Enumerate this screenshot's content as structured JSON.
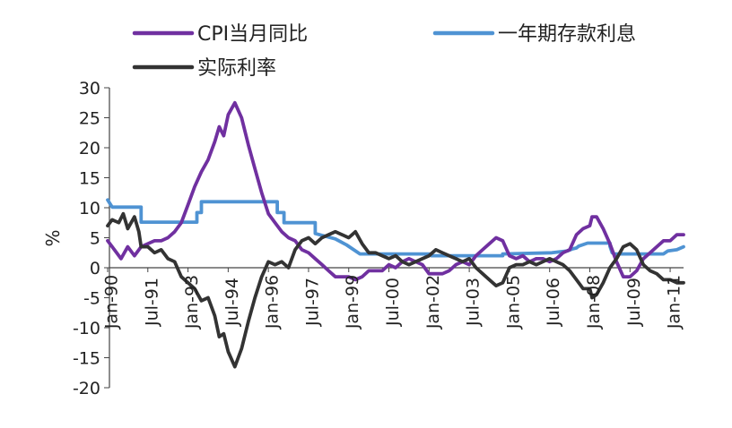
{
  "chart_data": {
    "type": "line",
    "title": "",
    "xlabel": "",
    "ylabel": "%",
    "ylim": [
      -20,
      30
    ],
    "y_ticks": [
      30,
      25,
      20,
      15,
      10,
      5,
      0,
      -5,
      -10,
      -15,
      -20
    ],
    "x_tick_labels": [
      "Jan-90",
      "Jul-91",
      "Jan-93",
      "Jul-94",
      "Jan-96",
      "Jul-97",
      "Jan-99",
      "Jul-00",
      "Jan-02",
      "Jul-03",
      "Jan-05",
      "Jul-06",
      "Jan-08",
      "Jul-09",
      "Jan-11"
    ],
    "xlim": [
      "1990-01",
      "2011-07"
    ],
    "grid": false,
    "legend_position": "top",
    "series": [
      {
        "name": "CPI当月同比",
        "color": "#7030a0",
        "points": [
          [
            "1990-01",
            4.5
          ],
          [
            "1990-04",
            3.0
          ],
          [
            "1990-07",
            1.5
          ],
          [
            "1990-10",
            3.5
          ],
          [
            "1991-01",
            2.0
          ],
          [
            "1991-04",
            3.5
          ],
          [
            "1991-07",
            4.0
          ],
          [
            "1991-10",
            4.5
          ],
          [
            "1992-01",
            4.5
          ],
          [
            "1992-04",
            5.0
          ],
          [
            "1992-07",
            6.0
          ],
          [
            "1992-10",
            7.5
          ],
          [
            "1993-01",
            10.5
          ],
          [
            "1993-04",
            13.5
          ],
          [
            "1993-07",
            16.0
          ],
          [
            "1993-10",
            18.0
          ],
          [
            "1994-01",
            21.0
          ],
          [
            "1994-03",
            23.5
          ],
          [
            "1994-05",
            22.0
          ],
          [
            "1994-07",
            25.5
          ],
          [
            "1994-10",
            27.5
          ],
          [
            "1995-01",
            25.0
          ],
          [
            "1995-04",
            20.5
          ],
          [
            "1995-07",
            16.5
          ],
          [
            "1995-10",
            12.5
          ],
          [
            "1996-01",
            9.0
          ],
          [
            "1996-04",
            7.5
          ],
          [
            "1996-07",
            6.0
          ],
          [
            "1996-10",
            5.0
          ],
          [
            "1997-01",
            4.5
          ],
          [
            "1997-04",
            3.0
          ],
          [
            "1997-07",
            2.5
          ],
          [
            "1997-10",
            1.5
          ],
          [
            "1998-01",
            0.5
          ],
          [
            "1998-04",
            -0.5
          ],
          [
            "1998-07",
            -1.5
          ],
          [
            "1998-10",
            -1.5
          ],
          [
            "1999-01",
            -1.5
          ],
          [
            "1999-04",
            -2.0
          ],
          [
            "1999-07",
            -1.5
          ],
          [
            "1999-10",
            -0.5
          ],
          [
            "2000-01",
            -0.5
          ],
          [
            "2000-04",
            -0.5
          ],
          [
            "2000-07",
            0.5
          ],
          [
            "2000-10",
            0.0
          ],
          [
            "2001-01",
            1.0
          ],
          [
            "2001-04",
            1.5
          ],
          [
            "2001-07",
            1.0
          ],
          [
            "2001-10",
            0.5
          ],
          [
            "2002-01",
            -1.0
          ],
          [
            "2002-04",
            -1.0
          ],
          [
            "2002-07",
            -1.0
          ],
          [
            "2002-10",
            -0.5
          ],
          [
            "2003-01",
            0.5
          ],
          [
            "2003-04",
            1.0
          ],
          [
            "2003-07",
            0.5
          ],
          [
            "2003-10",
            2.0
          ],
          [
            "2004-01",
            3.0
          ],
          [
            "2004-04",
            4.0
          ],
          [
            "2004-07",
            5.0
          ],
          [
            "2004-10",
            4.5
          ],
          [
            "2005-01",
            2.0
          ],
          [
            "2005-04",
            1.5
          ],
          [
            "2005-07",
            2.0
          ],
          [
            "2005-10",
            1.0
          ],
          [
            "2006-01",
            1.5
          ],
          [
            "2006-04",
            1.5
          ],
          [
            "2006-07",
            1.0
          ],
          [
            "2006-10",
            1.5
          ],
          [
            "2007-01",
            2.5
          ],
          [
            "2007-04",
            3.0
          ],
          [
            "2007-07",
            5.5
          ],
          [
            "2007-10",
            6.5
          ],
          [
            "2008-01",
            7.0
          ],
          [
            "2008-02",
            8.5
          ],
          [
            "2008-04",
            8.5
          ],
          [
            "2008-07",
            6.5
          ],
          [
            "2008-10",
            4.0
          ],
          [
            "2009-01",
            1.0
          ],
          [
            "2009-04",
            -1.5
          ],
          [
            "2009-07",
            -1.5
          ],
          [
            "2009-10",
            -0.5
          ],
          [
            "2010-01",
            1.5
          ],
          [
            "2010-04",
            2.5
          ],
          [
            "2010-07",
            3.5
          ],
          [
            "2010-10",
            4.5
          ],
          [
            "2011-01",
            4.5
          ],
          [
            "2011-04",
            5.5
          ],
          [
            "2011-07",
            5.5
          ]
        ]
      },
      {
        "name": "一年期存款利息",
        "color": "#4f93d3",
        "points": [
          [
            "1990-01",
            11.3
          ],
          [
            "1990-03",
            10.1
          ],
          [
            "1991-04",
            10.1
          ],
          [
            "1991-04",
            7.6
          ],
          [
            "1993-05",
            7.6
          ],
          [
            "1993-05",
            9.2
          ],
          [
            "1993-07",
            9.2
          ],
          [
            "1993-07",
            11.0
          ],
          [
            "1996-05",
            11.0
          ],
          [
            "1996-05",
            9.2
          ],
          [
            "1996-08",
            9.2
          ],
          [
            "1996-08",
            7.5
          ],
          [
            "1997-10",
            7.5
          ],
          [
            "1997-10",
            5.7
          ],
          [
            "1998-03",
            5.2
          ],
          [
            "1998-07",
            4.8
          ],
          [
            "1998-12",
            3.8
          ],
          [
            "1999-06",
            2.3
          ],
          [
            "2002-02",
            2.3
          ],
          [
            "2002-02",
            2.0
          ],
          [
            "2004-10",
            2.0
          ],
          [
            "2004-10",
            2.3
          ],
          [
            "2006-08",
            2.5
          ],
          [
            "2007-03",
            2.8
          ],
          [
            "2007-05",
            3.1
          ],
          [
            "2007-07",
            3.3
          ],
          [
            "2007-08",
            3.6
          ],
          [
            "2007-12",
            4.1
          ],
          [
            "2008-10",
            4.1
          ],
          [
            "2008-10",
            3.6
          ],
          [
            "2008-11",
            2.5
          ],
          [
            "2008-12",
            2.3
          ],
          [
            "2010-10",
            2.3
          ],
          [
            "2010-12",
            2.8
          ],
          [
            "2011-04",
            3.0
          ],
          [
            "2011-07",
            3.5
          ]
        ]
      },
      {
        "name": "实际利率",
        "color": "#333333",
        "points": [
          [
            "1990-01",
            7.0
          ],
          [
            "1990-03",
            8.0
          ],
          [
            "1990-06",
            7.5
          ],
          [
            "1990-08",
            9.0
          ],
          [
            "1990-10",
            6.5
          ],
          [
            "1991-01",
            8.5
          ],
          [
            "1991-03",
            6.0
          ],
          [
            "1991-04",
            3.5
          ],
          [
            "1991-07",
            3.5
          ],
          [
            "1991-10",
            2.5
          ],
          [
            "1992-01",
            3.0
          ],
          [
            "1992-04",
            1.5
          ],
          [
            "1992-07",
            1.0
          ],
          [
            "1992-10",
            -1.5
          ],
          [
            "1993-01",
            -2.5
          ],
          [
            "1993-04",
            -3.5
          ],
          [
            "1993-07",
            -5.5
          ],
          [
            "1993-10",
            -5.0
          ],
          [
            "1994-01",
            -8.0
          ],
          [
            "1994-03",
            -11.5
          ],
          [
            "1994-05",
            -11.0
          ],
          [
            "1994-07",
            -14.0
          ],
          [
            "1994-10",
            -16.5
          ],
          [
            "1995-01",
            -13.5
          ],
          [
            "1995-04",
            -9.0
          ],
          [
            "1995-07",
            -5.0
          ],
          [
            "1995-10",
            -1.5
          ],
          [
            "1996-01",
            1.0
          ],
          [
            "1996-04",
            0.5
          ],
          [
            "1996-07",
            1.0
          ],
          [
            "1996-10",
            0.0
          ],
          [
            "1997-01",
            3.0
          ],
          [
            "1997-04",
            4.5
          ],
          [
            "1997-07",
            5.0
          ],
          [
            "1997-10",
            4.0
          ],
          [
            "1998-01",
            5.0
          ],
          [
            "1998-04",
            5.5
          ],
          [
            "1998-07",
            6.0
          ],
          [
            "1998-10",
            5.5
          ],
          [
            "1999-01",
            5.0
          ],
          [
            "1999-04",
            6.0
          ],
          [
            "1999-07",
            4.0
          ],
          [
            "1999-10",
            2.5
          ],
          [
            "2000-01",
            2.5
          ],
          [
            "2000-04",
            2.0
          ],
          [
            "2000-07",
            1.5
          ],
          [
            "2000-10",
            2.0
          ],
          [
            "2001-01",
            1.0
          ],
          [
            "2001-04",
            0.5
          ],
          [
            "2001-07",
            1.0
          ],
          [
            "2001-10",
            1.5
          ],
          [
            "2002-01",
            2.0
          ],
          [
            "2002-04",
            3.0
          ],
          [
            "2002-07",
            2.5
          ],
          [
            "2002-10",
            2.0
          ],
          [
            "2003-01",
            1.5
          ],
          [
            "2003-04",
            1.0
          ],
          [
            "2003-07",
            1.5
          ],
          [
            "2003-10",
            0.0
          ],
          [
            "2004-01",
            -1.0
          ],
          [
            "2004-04",
            -2.0
          ],
          [
            "2004-07",
            -3.0
          ],
          [
            "2004-10",
            -2.5
          ],
          [
            "2005-01",
            0.0
          ],
          [
            "2005-04",
            0.5
          ],
          [
            "2005-07",
            0.5
          ],
          [
            "2005-10",
            1.0
          ],
          [
            "2006-01",
            0.5
          ],
          [
            "2006-04",
            1.0
          ],
          [
            "2006-07",
            1.5
          ],
          [
            "2006-10",
            1.0
          ],
          [
            "2007-01",
            0.5
          ],
          [
            "2007-04",
            -0.5
          ],
          [
            "2007-07",
            -2.0
          ],
          [
            "2007-10",
            -3.5
          ],
          [
            "2008-01",
            -3.5
          ],
          [
            "2008-02",
            -5.0
          ],
          [
            "2008-04",
            -4.5
          ],
          [
            "2008-07",
            -2.5
          ],
          [
            "2008-10",
            0.0
          ],
          [
            "2009-01",
            1.5
          ],
          [
            "2009-04",
            3.5
          ],
          [
            "2009-07",
            4.0
          ],
          [
            "2009-10",
            3.0
          ],
          [
            "2010-01",
            0.5
          ],
          [
            "2010-04",
            -0.5
          ],
          [
            "2010-07",
            -1.0
          ],
          [
            "2010-10",
            -2.0
          ],
          [
            "2011-01",
            -2.0
          ],
          [
            "2011-04",
            -2.5
          ],
          [
            "2011-07",
            -2.5
          ]
        ]
      }
    ]
  }
}
